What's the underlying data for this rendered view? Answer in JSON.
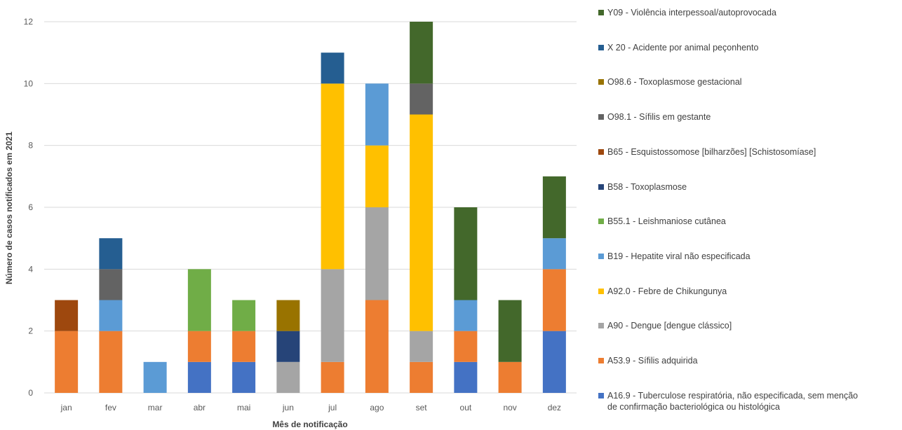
{
  "chart_data": {
    "type": "bar",
    "stacked": true,
    "xlabel": "Mês de notificação",
    "ylabel": "Número de casos notificados em 2021",
    "ylim": [
      0,
      12
    ],
    "yticks": [
      0,
      2,
      4,
      6,
      8,
      10,
      12
    ],
    "grid": true,
    "legend_position": "right",
    "categories": [
      "jan",
      "fev",
      "mar",
      "abr",
      "mai",
      "jun",
      "jul",
      "ago",
      "set",
      "out",
      "nov",
      "dez"
    ],
    "series": [
      {
        "name": "A16.9 - Tuberculose respiratória, não especificada, sem menção de confirmação bacteriológica ou histológica",
        "color": "#4472C4",
        "values": [
          0,
          0,
          0,
          1,
          1,
          0,
          0,
          0,
          0,
          1,
          0,
          2
        ]
      },
      {
        "name": "A53.9 - Sífilis adquirida",
        "color": "#ED7D31",
        "values": [
          2,
          2,
          0,
          1,
          1,
          0,
          1,
          3,
          1,
          1,
          1,
          2
        ]
      },
      {
        "name": "A90 - Dengue [dengue clássico]",
        "color": "#A5A5A5",
        "values": [
          0,
          0,
          0,
          0,
          0,
          1,
          3,
          3,
          1,
          0,
          0,
          0
        ]
      },
      {
        "name": "A92.0 - Febre de Chikungunya",
        "color": "#FFC000",
        "values": [
          0,
          0,
          0,
          0,
          0,
          0,
          6,
          2,
          7,
          0,
          0,
          0
        ]
      },
      {
        "name": "B19 - Hepatite viral não especificada",
        "color": "#5B9BD5",
        "values": [
          0,
          1,
          1,
          0,
          0,
          0,
          0,
          2,
          0,
          1,
          0,
          1
        ]
      },
      {
        "name": "B55.1 - Leishmaniose cutânea",
        "color": "#70AD47",
        "values": [
          0,
          0,
          0,
          2,
          1,
          0,
          0,
          0,
          0,
          0,
          0,
          0
        ]
      },
      {
        "name": "B58 - Toxoplasmose",
        "color": "#264478",
        "values": [
          0,
          0,
          0,
          0,
          0,
          1,
          0,
          0,
          0,
          0,
          0,
          0
        ]
      },
      {
        "name": "B65 - Esquistossomose [bilharzões] [Schistosomíase]",
        "color": "#9E480E",
        "values": [
          1,
          0,
          0,
          0,
          0,
          0,
          0,
          0,
          0,
          0,
          0,
          0
        ]
      },
      {
        "name": "O98.1 - Sífilis em gestante",
        "color": "#636363",
        "values": [
          0,
          1,
          0,
          0,
          0,
          0,
          0,
          0,
          1,
          0,
          0,
          0
        ]
      },
      {
        "name": "O98.6 - Toxoplasmose gestacional",
        "color": "#997300",
        "values": [
          0,
          0,
          0,
          0,
          0,
          1,
          0,
          0,
          0,
          0,
          0,
          0
        ]
      },
      {
        "name": "X 20 - Acidente por animal peçonhento",
        "color": "#255E91",
        "values": [
          0,
          1,
          0,
          0,
          0,
          0,
          1,
          0,
          0,
          0,
          0,
          0
        ]
      },
      {
        "name": "Y09 - Violência interpessoal/autoprovocada",
        "color": "#43682B",
        "values": [
          0,
          0,
          0,
          0,
          0,
          0,
          0,
          0,
          2,
          3,
          2,
          2
        ]
      }
    ]
  },
  "legend": {
    "items": [
      {
        "label": "Y09 - Violência interpessoal/autoprovocada",
        "color": "#43682B"
      },
      {
        "label": "X 20 - Acidente por animal peçonhento",
        "color": "#255E91"
      },
      {
        "label": "O98.6 - Toxoplasmose gestacional",
        "color": "#997300"
      },
      {
        "label": "O98.1 - Sífilis em gestante",
        "color": "#636363"
      },
      {
        "label": "B65 - Esquistossomose [bilharzões] [Schistosomíase]",
        "color": "#9E480E"
      },
      {
        "label": "B58 - Toxoplasmose",
        "color": "#264478"
      },
      {
        "label": "B55.1 - Leishmaniose cutânea",
        "color": "#70AD47"
      },
      {
        "label": "B19 - Hepatite viral não especificada",
        "color": "#5B9BD5"
      },
      {
        "label": "A92.0 - Febre de Chikungunya",
        "color": "#FFC000"
      },
      {
        "label": "A90 - Dengue [dengue clássico]",
        "color": "#A5A5A5"
      },
      {
        "label": "A53.9 - Sífilis adquirida",
        "color": "#ED7D31"
      },
      {
        "label": "A16.9 - Tuberculose respiratória, não especificada, sem menção\nde confirmação bacteriológica ou histológica",
        "color": "#4472C4"
      }
    ]
  }
}
